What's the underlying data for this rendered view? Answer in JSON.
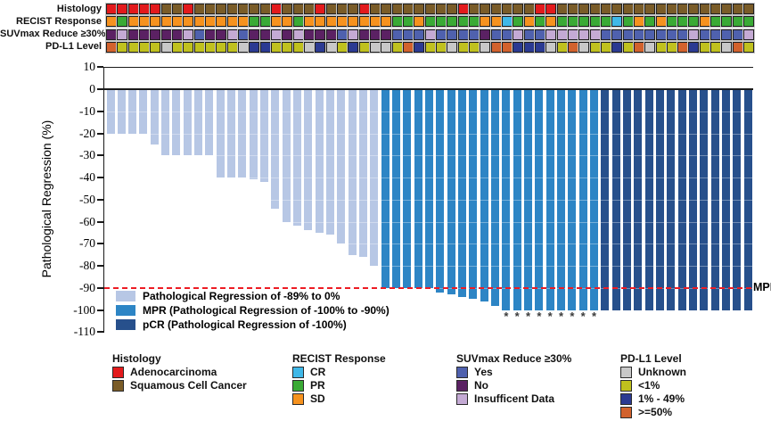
{
  "colors": {
    "adenocarcinoma": "#e31a1c",
    "squamous": "#7a5c28",
    "cr": "#3fb8e8",
    "pr": "#3aaa35",
    "sd": "#f6921e",
    "suv_yes": "#4f61ae",
    "suv_no": "#5b2163",
    "suv_ins": "#c4aad4",
    "pdl1_unknown": "#c8c8c8",
    "pdl1_lt1": "#c0c11e",
    "pdl1_1_49": "#2b3a92",
    "pdl1_ge50": "#d2622d",
    "bar_reg": "#b7c7e5",
    "bar_mpr": "#2d85c5",
    "bar_pcr": "#27508c",
    "threshold_red": "#ed1c24"
  },
  "tracks": {
    "rows": [
      {
        "label": "Histology",
        "cells": [
          "adenocarcinoma",
          "adenocarcinoma",
          "adenocarcinoma",
          "adenocarcinoma",
          "adenocarcinoma",
          "squamous",
          "squamous",
          "adenocarcinoma",
          "squamous",
          "squamous",
          "squamous",
          "squamous",
          "squamous",
          "squamous",
          "squamous",
          "adenocarcinoma",
          "squamous",
          "squamous",
          "squamous",
          "adenocarcinoma",
          "squamous",
          "squamous",
          "squamous",
          "adenocarcinoma",
          "squamous",
          "squamous",
          "squamous",
          "squamous",
          "squamous",
          "squamous",
          "squamous",
          "squamous",
          "adenocarcinoma",
          "squamous",
          "squamous",
          "squamous",
          "squamous",
          "squamous",
          "squamous",
          "adenocarcinoma",
          "adenocarcinoma",
          "squamous",
          "squamous",
          "squamous",
          "squamous",
          "squamous",
          "squamous",
          "squamous",
          "squamous",
          "squamous",
          "squamous",
          "squamous",
          "squamous",
          "squamous",
          "squamous",
          "squamous",
          "squamous",
          "squamous",
          "squamous"
        ]
      },
      {
        "label": "RECIST Response",
        "cells": [
          "sd",
          "pr",
          "sd",
          "sd",
          "sd",
          "sd",
          "sd",
          "sd",
          "sd",
          "sd",
          "sd",
          "sd",
          "sd",
          "pr",
          "pr",
          "sd",
          "sd",
          "pr",
          "sd",
          "sd",
          "sd",
          "sd",
          "sd",
          "sd",
          "sd",
          "sd",
          "pr",
          "pr",
          "sd",
          "pr",
          "pr",
          "pr",
          "pr",
          "pr",
          "sd",
          "sd",
          "cr",
          "pr",
          "sd",
          "pr",
          "sd",
          "pr",
          "pr",
          "pr",
          "pr",
          "pr",
          "cr",
          "pr",
          "sd",
          "pr",
          "sd",
          "pr",
          "pr",
          "pr",
          "sd",
          "pr",
          "pr",
          "pr",
          "pr"
        ]
      },
      {
        "label": "SUVmax Reduce ≥30%",
        "cells": [
          "suv_no",
          "suv_ins",
          "suv_no",
          "suv_no",
          "suv_no",
          "suv_no",
          "suv_no",
          "suv_ins",
          "suv_yes",
          "suv_no",
          "suv_no",
          "suv_ins",
          "suv_yes",
          "suv_no",
          "suv_no",
          "suv_ins",
          "suv_no",
          "suv_ins",
          "suv_no",
          "suv_no",
          "suv_no",
          "suv_yes",
          "suv_ins",
          "suv_no",
          "suv_no",
          "suv_no",
          "suv_yes",
          "suv_yes",
          "suv_yes",
          "suv_ins",
          "suv_yes",
          "suv_yes",
          "suv_yes",
          "suv_yes",
          "suv_no",
          "suv_yes",
          "suv_yes",
          "suv_ins",
          "suv_yes",
          "suv_yes",
          "suv_ins",
          "suv_ins",
          "suv_ins",
          "suv_ins",
          "suv_ins",
          "suv_yes",
          "suv_yes",
          "suv_yes",
          "suv_yes",
          "suv_yes",
          "suv_yes",
          "suv_yes",
          "suv_yes",
          "suv_ins",
          "suv_yes",
          "suv_yes",
          "suv_yes",
          "suv_yes",
          "suv_ins"
        ]
      },
      {
        "label": "PD-L1 Level",
        "cells": [
          "pdl1_ge50",
          "pdl1_lt1",
          "pdl1_lt1",
          "pdl1_lt1",
          "pdl1_lt1",
          "pdl1_unknown",
          "pdl1_lt1",
          "pdl1_lt1",
          "pdl1_lt1",
          "pdl1_lt1",
          "pdl1_lt1",
          "pdl1_lt1",
          "pdl1_unknown",
          "pdl1_1_49",
          "pdl1_1_49",
          "pdl1_lt1",
          "pdl1_lt1",
          "pdl1_lt1",
          "pdl1_unknown",
          "pdl1_1_49",
          "pdl1_unknown",
          "pdl1_lt1",
          "pdl1_1_49",
          "pdl1_lt1",
          "pdl1_unknown",
          "pdl1_unknown",
          "pdl1_lt1",
          "pdl1_ge50",
          "pdl1_1_49",
          "pdl1_lt1",
          "pdl1_lt1",
          "pdl1_unknown",
          "pdl1_lt1",
          "pdl1_lt1",
          "pdl1_unknown",
          "pdl1_ge50",
          "pdl1_ge50",
          "pdl1_1_49",
          "pdl1_1_49",
          "pdl1_1_49",
          "pdl1_unknown",
          "pdl1_lt1",
          "pdl1_ge50",
          "pdl1_unknown",
          "pdl1_lt1",
          "pdl1_lt1",
          "pdl1_1_49",
          "pdl1_lt1",
          "pdl1_ge50",
          "pdl1_unknown",
          "pdl1_lt1",
          "pdl1_lt1",
          "pdl1_ge50",
          "pdl1_1_49",
          "pdl1_lt1",
          "pdl1_lt1",
          "pdl1_unknown",
          "pdl1_ge50",
          "pdl1_lt1"
        ]
      }
    ]
  },
  "chart_data": {
    "type": "bar",
    "title": "",
    "ylabel": "Pathological Regression (%)",
    "ylim": [
      -110,
      10
    ],
    "yticks": [
      10,
      0,
      -10,
      -20,
      -30,
      -40,
      -50,
      -60,
      -70,
      -80,
      -90,
      -100,
      -110
    ],
    "grid": "faint-horizontal",
    "n_patients": 59,
    "values": [
      -20,
      -20,
      -20,
      -20,
      -25,
      -30,
      -30,
      -30,
      -30,
      -30,
      -40,
      -40,
      -40,
      -41,
      -42,
      -54,
      -60,
      -62,
      -64,
      -65,
      -66,
      -70,
      -75,
      -76,
      -80,
      -90,
      -90,
      -90,
      -90,
      -90,
      -92,
      -93,
      -94,
      -95,
      -96,
      -98,
      -100,
      -100,
      -100,
      -100,
      -100,
      -100,
      -100,
      -100,
      -100,
      -100,
      -100,
      -100,
      -100,
      -100,
      -100,
      -100,
      -100,
      -100,
      -100,
      -100,
      -100,
      -100,
      -100
    ],
    "groups": [
      "reg",
      "reg",
      "reg",
      "reg",
      "reg",
      "reg",
      "reg",
      "reg",
      "reg",
      "reg",
      "reg",
      "reg",
      "reg",
      "reg",
      "reg",
      "reg",
      "reg",
      "reg",
      "reg",
      "reg",
      "reg",
      "reg",
      "reg",
      "reg",
      "reg",
      "mpr",
      "mpr",
      "mpr",
      "mpr",
      "mpr",
      "mpr",
      "mpr",
      "mpr",
      "mpr",
      "mpr",
      "mpr",
      "mpr",
      "mpr",
      "mpr",
      "mpr",
      "mpr",
      "mpr",
      "mpr",
      "mpr",
      "mpr",
      "pcr",
      "pcr",
      "pcr",
      "pcr",
      "pcr",
      "pcr",
      "pcr",
      "pcr",
      "pcr",
      "pcr",
      "pcr",
      "pcr",
      "pcr",
      "pcr"
    ],
    "asterisk_bars": [
      37,
      38,
      39,
      40,
      41,
      42,
      43,
      44,
      45
    ],
    "asterisk_symbol": "*",
    "threshold": {
      "value": -90,
      "label": "MPR"
    },
    "group_color_keys": {
      "reg": "bar_reg",
      "mpr": "bar_mpr",
      "pcr": "bar_pcr"
    }
  },
  "plot_legend": {
    "items": [
      {
        "color_key": "bar_reg",
        "label": "Pathological Regression of -89% to 0%"
      },
      {
        "color_key": "bar_mpr",
        "label": "MPR (Pathological Regression of -100% to -90%)"
      },
      {
        "color_key": "bar_pcr",
        "label": "pCR (Pathological Regression of -100%)"
      }
    ]
  },
  "bottom_legends": [
    {
      "title": "Histology",
      "items": [
        {
          "color_key": "adenocarcinoma",
          "label": "Adenocarcinoma"
        },
        {
          "color_key": "squamous",
          "label": "Squamous Cell Cancer"
        }
      ]
    },
    {
      "title": "RECIST Response",
      "items": [
        {
          "color_key": "cr",
          "label": "CR"
        },
        {
          "color_key": "pr",
          "label": "PR"
        },
        {
          "color_key": "sd",
          "label": "SD"
        }
      ]
    },
    {
      "title": "SUVmax Reduce ≥30%",
      "items": [
        {
          "color_key": "suv_yes",
          "label": "Yes"
        },
        {
          "color_key": "suv_no",
          "label": "No"
        },
        {
          "color_key": "suv_ins",
          "label": "Insufficent Data"
        }
      ]
    },
    {
      "title": "PD-L1 Level",
      "items": [
        {
          "color_key": "pdl1_unknown",
          "label": "Unknown"
        },
        {
          "color_key": "pdl1_lt1",
          "label": "<1%"
        },
        {
          "color_key": "pdl1_1_49",
          "label": "1% - 49%"
        },
        {
          "color_key": "pdl1_ge50",
          "label": ">=50%"
        }
      ]
    }
  ]
}
